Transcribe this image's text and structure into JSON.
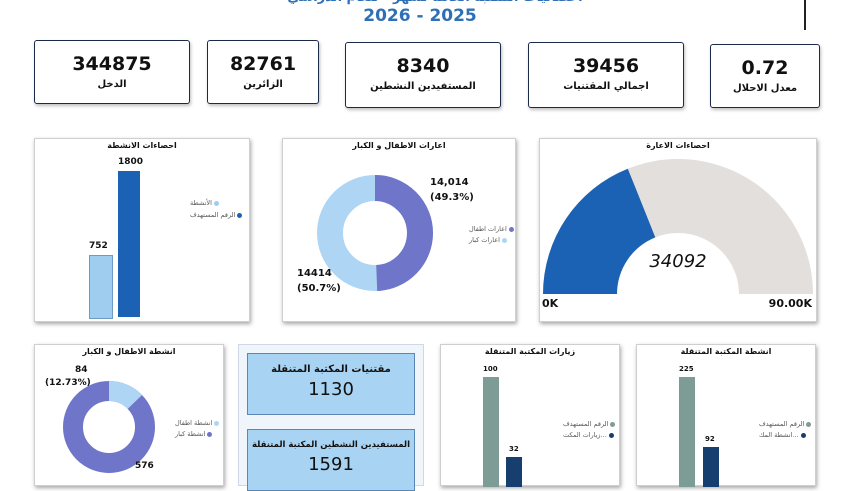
{
  "header": {
    "title_partial": "احصائيات المكتبة العامة لشهر  - للعام الدراسي",
    "year": "2026 - 2025"
  },
  "kpis": [
    {
      "value": "344875",
      "label": "الدخل"
    },
    {
      "value": "82761",
      "label": "الزائرين"
    },
    {
      "value": "8340",
      "label": "المستفيدين النشطين"
    },
    {
      "value": "39456",
      "label": "اجمالي المقتنيات"
    },
    {
      "value": "0.72",
      "label": "معدل الاحلال"
    }
  ],
  "activities_chart": {
    "title": "احصاءات الانشطة",
    "legend": [
      "الأنشطة",
      "الرقم المستهدف"
    ],
    "value_labels": [
      "752",
      "1800"
    ]
  },
  "borrow_donut": {
    "title": "اعارات الاطفال و الكبار",
    "label_a": "14,014",
    "pct_a": "(49.3%)",
    "label_b": "14414",
    "pct_b": "(50.7%)",
    "legend": [
      "اعارات اطفال",
      "اعارات كبار"
    ]
  },
  "gauge": {
    "title": "احصاءات الاعارة",
    "value": "34092",
    "min": "0K",
    "max": "90.00K"
  },
  "kids_activities_donut": {
    "title": "انشطة الاطفال و الكبار",
    "label_a": "84",
    "pct_a": "(12.73%)",
    "label_b": "576",
    "legend": [
      "انشطة اطفال",
      "انشطة كبار"
    ]
  },
  "mobile_library": {
    "card1_title": "مقتنيات المكتبة المتنقلة",
    "card1_value": "1130",
    "card2_title": "المستفيدين النشطين المكتبة المتنقلة",
    "card2_value": "1591"
  },
  "mobile_visits": {
    "title": "زيارات المكتبة المتنقلة",
    "value_labels": [
      "100",
      "32"
    ],
    "legend": [
      "الرقم المستهدف",
      "زيارات المكت..."
    ]
  },
  "mobile_activities": {
    "title": "انشطة المكتبة المتنقلة",
    "value_labels": [
      "225",
      "92"
    ],
    "legend": [
      "الرقم المستهدف",
      "انشطة المك..."
    ]
  },
  "chart_data": [
    {
      "type": "bar",
      "title": "احصاءات الانشطة",
      "categories": [
        "الأنشطة",
        "الرقم المستهدف"
      ],
      "values": [
        752,
        1800
      ],
      "colors": [
        "#9fcdf0",
        "#1b62b5"
      ]
    },
    {
      "type": "pie",
      "title": "اعارات الاطفال و الكبار",
      "labels": [
        "اعارات اطفال",
        "اعارات كبار"
      ],
      "values": [
        14014,
        14414
      ],
      "percent": [
        49.3,
        50.7
      ],
      "colors": [
        "#6f75c8",
        "#aed6f4"
      ]
    },
    {
      "type": "gauge",
      "title": "احصاءات الاعارة",
      "value": 34092,
      "min": 0,
      "max": 90000,
      "colors": [
        "#1b62b5",
        "#e3dfdc"
      ]
    },
    {
      "type": "pie",
      "title": "انشطة الاطفال و الكبار",
      "labels": [
        "انشطة اطفال",
        "انشطة كبار"
      ],
      "values": [
        84,
        576
      ],
      "percent": [
        12.73,
        87.27
      ],
      "colors": [
        "#aed6f4",
        "#6f75c8"
      ]
    },
    {
      "type": "bar",
      "title": "زيارات المكتبة المتنقلة",
      "categories": [
        "الرقم المستهدف",
        "زيارات المكتبة"
      ],
      "values": [
        100,
        32
      ],
      "colors": [
        "#7d9c96",
        "#163e6e"
      ]
    },
    {
      "type": "bar",
      "title": "انشطة المكتبة المتنقلة",
      "categories": [
        "الرقم المستهدف",
        "انشطة المكتبة"
      ],
      "values": [
        225,
        92
      ],
      "colors": [
        "#7d9c96",
        "#163e6e"
      ]
    }
  ]
}
